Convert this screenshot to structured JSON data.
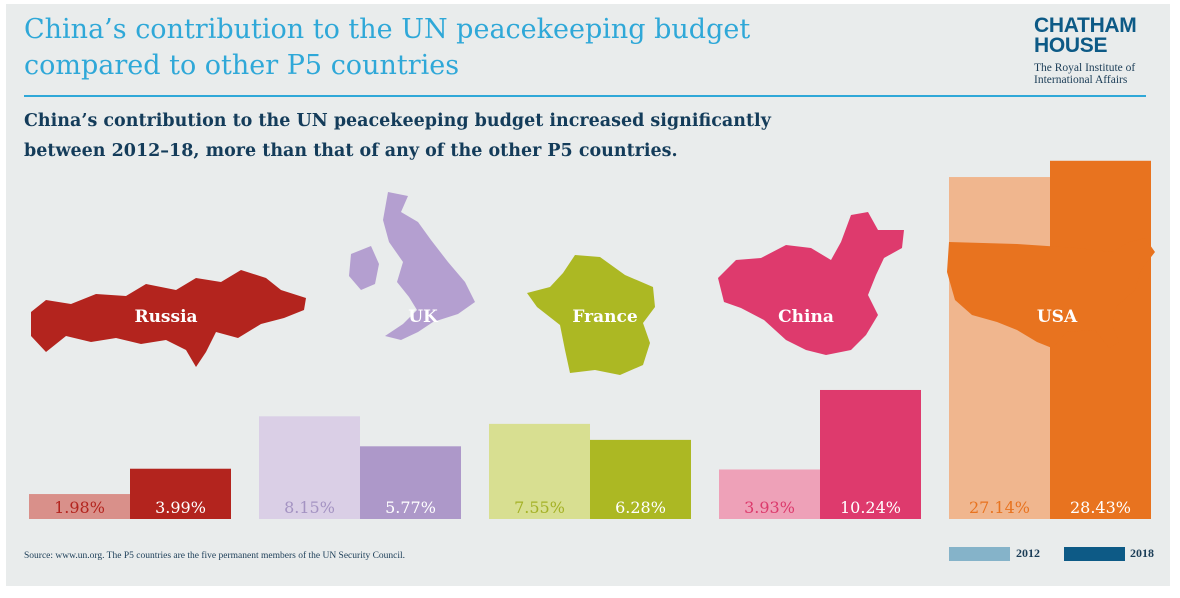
{
  "header": {
    "title_line1": "China’s contribution to the UN peacekeeping budget",
    "title_line2": "compared to other P5 countries",
    "subtitle_line1": "China’s contribution to the UN peacekeeping budget increased significantly",
    "subtitle_line2": "between 2012–18, more than that of any of the other P5 countries."
  },
  "brand": {
    "name_line1": "CHATHAM",
    "name_line2": "HOUSE",
    "tag_line1": "The Royal Institute of",
    "tag_line2": "International Affairs"
  },
  "footer": {
    "source": "Source: www.un.org. The P5 countries are the five permanent members of the UN Security Council."
  },
  "legend": {
    "items": [
      {
        "label": "2012",
        "color": "#85b3c9"
      },
      {
        "label": "2018",
        "color": "#0d5a86"
      }
    ]
  },
  "chart_data": {
    "type": "bar",
    "title": "China’s contribution to the UN peacekeeping budget compared to other P5 countries",
    "categories": [
      "Russia",
      "UK",
      "France",
      "China",
      "USA"
    ],
    "series": [
      {
        "name": "2012",
        "values": [
          1.98,
          8.15,
          7.55,
          3.93,
          27.14
        ],
        "labels": [
          "1.98%",
          "8.15%",
          "7.55%",
          "3.93%",
          "27.14%"
        ],
        "colors": [
          "#d9908a",
          "#dacfe6",
          "#d8df91",
          "#eea1b8",
          "#f0b68e"
        ],
        "label_colors": [
          "#b3241e",
          "#a493c2",
          "#a4b126",
          "#dc3a6c",
          "#e8731f"
        ]
      },
      {
        "name": "2018",
        "values": [
          3.99,
          5.77,
          6.28,
          10.24,
          28.43
        ],
        "labels": [
          "3.99%",
          "5.77%",
          "6.28%",
          "10.24%",
          "28.43%"
        ],
        "colors": [
          "#b3241e",
          "#ad98c9",
          "#acb823",
          "#de3a6d",
          "#e8731f"
        ],
        "label_colors": [
          "#ffffff",
          "#ffffff",
          "#ffffff",
          "#ffffff",
          "#ffffff"
        ]
      }
    ],
    "country_colors": [
      "#b3241e",
      "#b49fd0",
      "#acb823",
      "#de3a6d",
      "#e8731f"
    ],
    "xlabel": "",
    "ylabel": "",
    "grid": false,
    "legend_position": "bottom-right"
  }
}
